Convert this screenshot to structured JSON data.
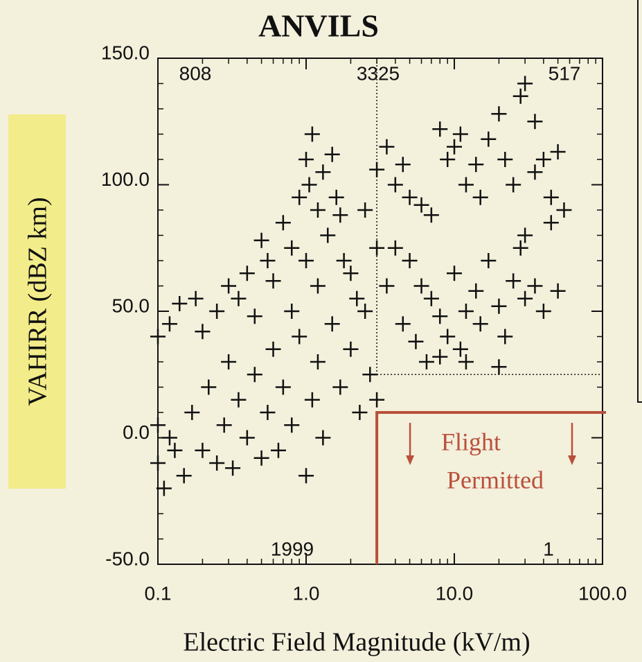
{
  "chart_data": {
    "type": "scatter",
    "title": "ANVILS",
    "x_label": "Electric Field Magnitude (kV/m)",
    "y_label": "VAHIRR (dBZ km)",
    "x_log": true,
    "xlim": [
      0.1,
      100
    ],
    "xticks": [
      0.1,
      {
        "value": 1,
        "label": "1.0"
      },
      {
        "value": 10,
        "label": "10.0"
      },
      {
        "value": 100,
        "label": "100.0"
      }
    ],
    "ylim": [
      -50,
      150
    ],
    "yticks": [
      {
        "value": -50,
        "label": "-50.0"
      },
      {
        "value": 0,
        "label": "0.0"
      },
      {
        "value": 50,
        "label": "50.0"
      },
      {
        "value": 100,
        "label": "100.0"
      },
      {
        "value": 150,
        "label": "150.0"
      }
    ],
    "color": "#111111",
    "x": [
      0.1,
      0.1,
      0.11,
      0.12,
      0.13,
      0.15,
      0.17,
      0.2,
      0.22,
      0.25,
      0.28,
      0.3,
      0.32,
      0.35,
      0.4,
      0.45,
      0.5,
      0.55,
      0.6,
      0.65,
      0.7,
      0.8,
      0.9,
      1.0,
      1.1,
      1.2,
      1.3,
      1.5,
      1.7,
      2.0,
      2.3,
      2.7,
      3.0,
      0.1,
      0.12,
      0.14,
      0.18,
      0.2,
      0.25,
      0.3,
      0.35,
      0.4,
      0.45,
      0.5,
      0.55,
      0.6,
      0.7,
      0.8,
      0.9,
      1.0,
      1.05,
      1.1,
      1.2,
      1.3,
      1.4,
      1.5,
      1.6,
      1.7,
      1.8,
      2.0,
      2.2,
      2.5,
      1.2,
      1.0,
      0.8,
      3.0,
      3.5,
      4,
      4.5,
      5,
      6,
      7,
      8,
      9,
      10,
      11,
      12,
      14,
      15,
      17,
      20,
      22,
      25,
      28,
      30,
      35,
      40,
      45,
      50,
      55,
      4,
      5,
      6,
      7,
      8,
      9,
      10,
      11,
      12,
      14,
      15,
      17,
      20,
      22,
      25,
      28,
      30,
      35,
      40,
      45,
      50,
      3.5,
      4.5,
      5.5,
      6.5,
      8,
      12,
      20,
      3,
      2.5,
      30,
      35
    ],
    "values": [
      5,
      -10,
      -20,
      0,
      -5,
      -15,
      10,
      -5,
      20,
      -10,
      5,
      30,
      -12,
      15,
      0,
      25,
      -8,
      10,
      35,
      -5,
      20,
      5,
      40,
      -15,
      15,
      30,
      0,
      45,
      20,
      35,
      10,
      25,
      15,
      40,
      45,
      53,
      55,
      42,
      50,
      60,
      55,
      65,
      48,
      78,
      70,
      62,
      85,
      75,
      95,
      110,
      100,
      120,
      90,
      105,
      80,
      112,
      95,
      88,
      70,
      65,
      55,
      50,
      60,
      70,
      50,
      106,
      115,
      100,
      108,
      95,
      92,
      88,
      122,
      110,
      115,
      120,
      100,
      108,
      95,
      118,
      128,
      110,
      100,
      135,
      140,
      125,
      110,
      95,
      113,
      90,
      75,
      70,
      60,
      55,
      48,
      40,
      65,
      35,
      50,
      58,
      45,
      70,
      52,
      40,
      62,
      75,
      55,
      60,
      50,
      85,
      58,
      60,
      45,
      38,
      30,
      32,
      30,
      28,
      75,
      90,
      80,
      105
    ],
    "thresholds": {
      "field": 3,
      "vahirr": 25,
      "permitted_vahirr": 10
    },
    "region_counts": {
      "upper_left": 808,
      "upper_middle": 3325,
      "upper_right": 517,
      "lower_left": 1999,
      "lower_right": 1
    },
    "flight_region_label": [
      "Flight",
      "Permitted"
    ]
  }
}
